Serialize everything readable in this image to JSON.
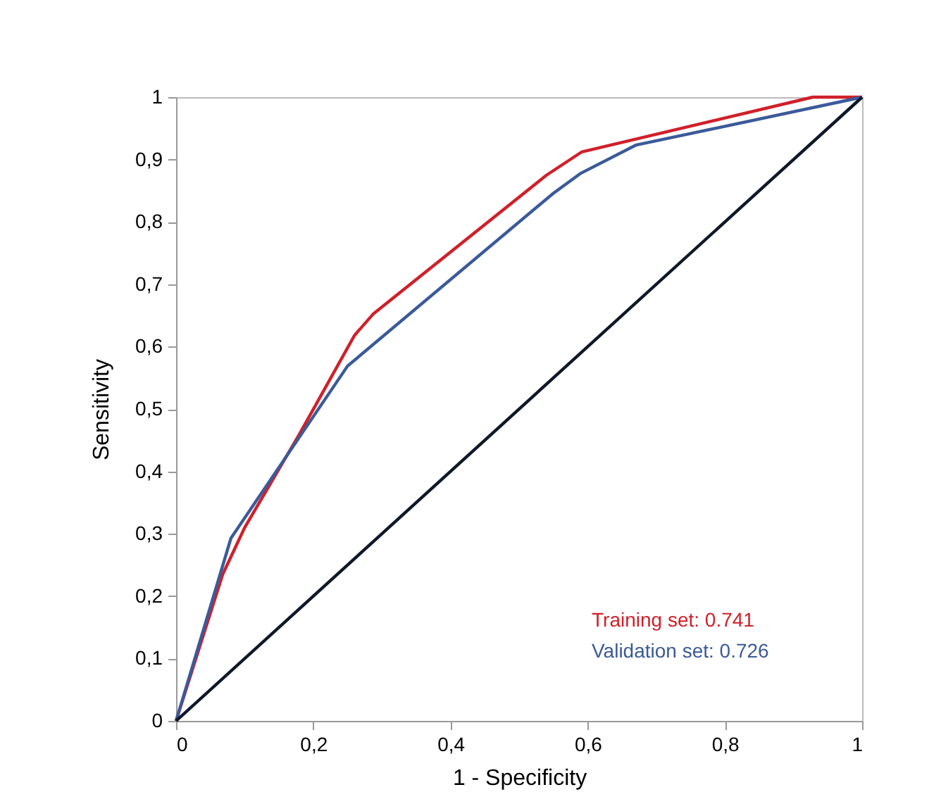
{
  "chart_data": {
    "type": "line",
    "xlabel": "1 - Specificity",
    "ylabel": "Sensitivity",
    "xlim": [
      0,
      1
    ],
    "ylim": [
      0,
      1
    ],
    "xticks": [
      0,
      {
        "value": 0.2,
        "label": "0,2"
      },
      {
        "value": 0.4,
        "label": "0,4"
      },
      {
        "value": 0.6,
        "label": "0,6"
      },
      {
        "value": 0.8,
        "label": "0,8"
      },
      1
    ],
    "yticks": [
      0,
      {
        "value": 0.1,
        "label": "0,1"
      },
      {
        "value": 0.2,
        "label": "0,2"
      },
      {
        "value": 0.3,
        "label": "0,3"
      },
      {
        "value": 0.4,
        "label": "0,4"
      },
      {
        "value": 0.5,
        "label": "0,5"
      },
      {
        "value": 0.6,
        "label": "0,6"
      },
      {
        "value": 0.7,
        "label": "0,7"
      },
      {
        "value": 0.8,
        "label": "0,8"
      },
      {
        "value": 0.9,
        "label": "0,9"
      },
      1
    ],
    "grid": false,
    "legend": false,
    "marker": "none",
    "line_style": "solid",
    "series": [
      {
        "color": "#d0202a",
        "x": [
          0,
          0.068,
          0.1,
          0.18,
          0.26,
          0.287,
          0.54,
          0.591,
          0.928,
          1
        ],
        "values": [
          0,
          0.235,
          0.31,
          0.46,
          0.618,
          0.652,
          0.875,
          0.912,
          1,
          1
        ]
      },
      {
        "color": "#3b5a9a",
        "x": [
          0,
          0.08,
          0.25,
          0.55,
          0.59,
          0.67,
          1
        ],
        "values": [
          0,
          0.293,
          0.569,
          0.846,
          0.878,
          0.923,
          1
        ]
      },
      {
        "color": "#101828",
        "x": [
          0,
          1
        ],
        "values": [
          0,
          1
        ]
      }
    ],
    "annotations": [
      "Training set:     0.741",
      "Validation set:  0.726"
    ]
  }
}
